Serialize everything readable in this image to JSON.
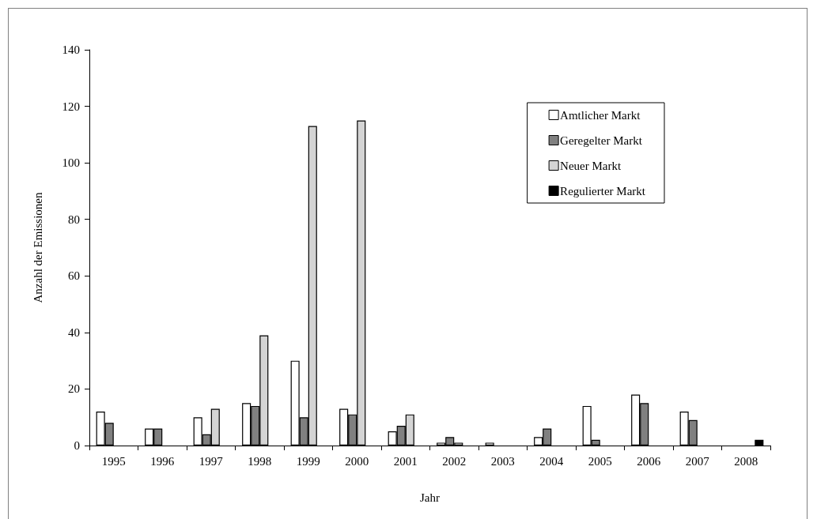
{
  "chart_data": {
    "type": "bar",
    "xlabel": "Jahr",
    "ylabel": "Anzahl der Emissionen",
    "categories": [
      "1995",
      "1996",
      "1997",
      "1998",
      "1999",
      "2000",
      "2001",
      "2002",
      "2003",
      "2004",
      "2005",
      "2006",
      "2007",
      "2008"
    ],
    "series": [
      {
        "name": "Amtlicher Markt",
        "color": "#ffffff",
        "values": [
          12,
          6,
          10,
          15,
          30,
          13,
          5,
          1,
          1,
          3,
          14,
          18,
          12,
          null
        ]
      },
      {
        "name": "Geregelter Markt",
        "color": "#808080",
        "values": [
          8,
          6,
          4,
          14,
          10,
          11,
          7,
          3,
          null,
          6,
          2,
          15,
          9,
          null
        ]
      },
      {
        "name": "Neuer Markt",
        "color": "#d4d4d4",
        "values": [
          null,
          null,
          13,
          39,
          113,
          115,
          11,
          1,
          null,
          null,
          null,
          null,
          null,
          null
        ]
      },
      {
        "name": "Regulierter Markt",
        "color": "#000000",
        "values": [
          null,
          null,
          null,
          null,
          null,
          null,
          null,
          null,
          null,
          null,
          null,
          null,
          null,
          2
        ]
      }
    ],
    "ylim": [
      0,
      140
    ],
    "yticks": [
      0,
      20,
      40,
      60,
      80,
      100,
      120,
      140
    ],
    "grid": false,
    "legend": "top right"
  }
}
